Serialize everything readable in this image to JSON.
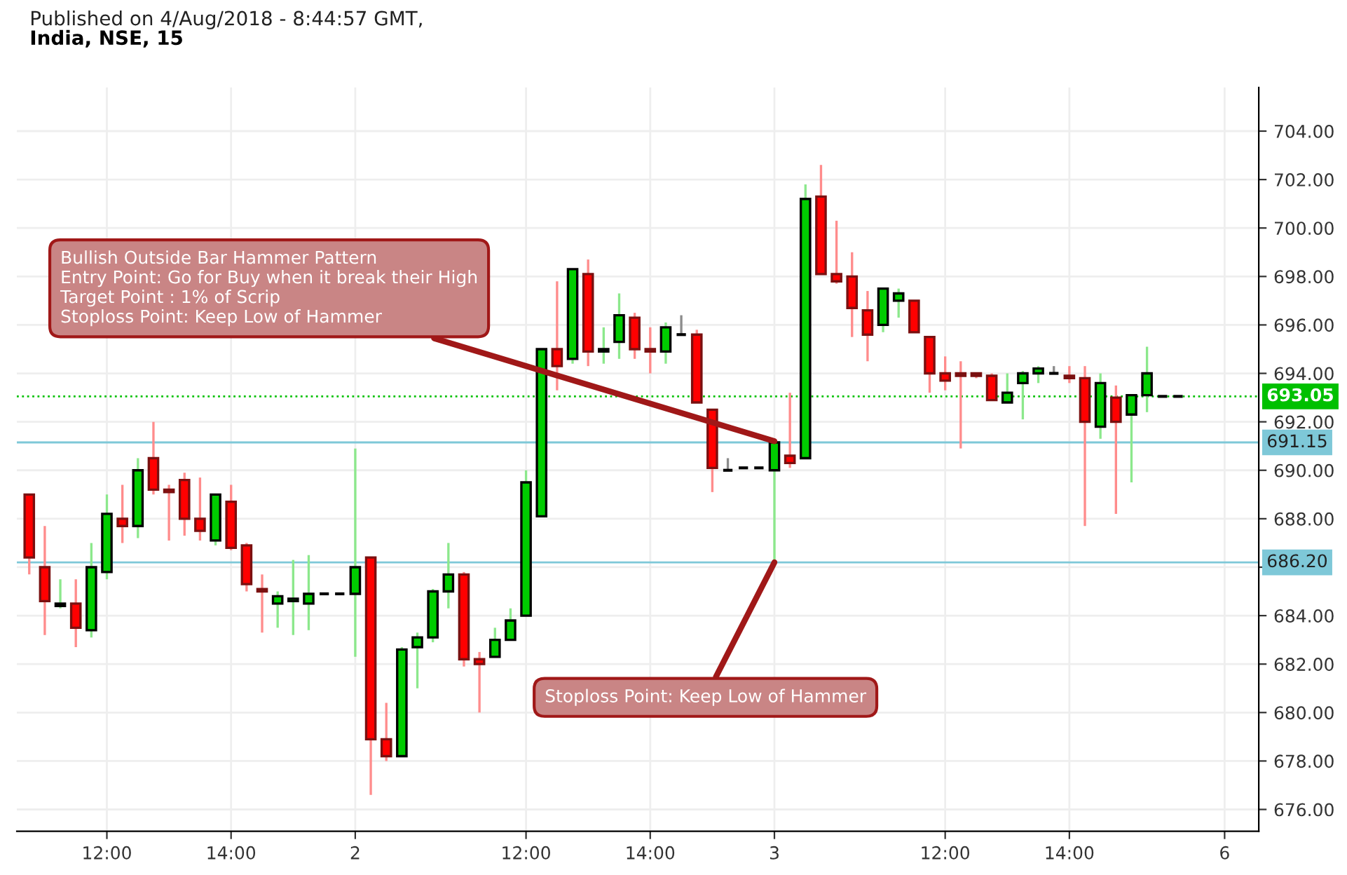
{
  "chart_data": {
    "type": "candlestick",
    "title": "India, NSE, 15",
    "annotations": [
      "Published on 4/Aug/2018 - 8:44:57 GMT,",
      {
        "text": "Bullish Outside Bar Hammer Pattern\nEntry Point: Go for Buy when it break their High\nTarget Point : 1% of Scrip\nStoploss Point: Keep Low of Hammer",
        "x": "3",
        "y": 691.2
      },
      {
        "text": "Stoploss Point: Keep Low of Hammer",
        "x": "3",
        "y": 686.2
      }
    ],
    "categories": [
      null,
      null,
      null,
      null,
      null,
      "12:00",
      null,
      null,
      null,
      null,
      null,
      null,
      null,
      "14:00",
      null,
      null,
      null,
      null,
      null,
      null,
      null,
      "2",
      null,
      null,
      null,
      null,
      null,
      null,
      null,
      null,
      null,
      null,
      "12:00",
      null,
      null,
      null,
      null,
      null,
      null,
      null,
      "14:00",
      null,
      null,
      null,
      null,
      null,
      null,
      null,
      "3",
      null,
      null,
      null,
      null,
      null,
      null,
      null,
      null,
      null,
      null,
      "12:00",
      null,
      null,
      null,
      null,
      null,
      null,
      null,
      "14:00",
      null,
      null,
      null,
      null,
      null,
      null,
      null,
      null,
      null,
      "6"
    ],
    "ohlc": [
      [
        689.0,
        689.0,
        685.7,
        686.4
      ],
      [
        686.0,
        687.7,
        683.2,
        684.6
      ],
      [
        684.4,
        685.5,
        684.3,
        684.5
      ],
      [
        684.5,
        685.5,
        682.7,
        683.5
      ],
      [
        683.4,
        687.0,
        683.1,
        686.0
      ],
      [
        685.8,
        689.0,
        685.5,
        688.2
      ],
      [
        688.0,
        689.4,
        687.0,
        687.7
      ],
      [
        687.7,
        690.5,
        687.2,
        690.0
      ],
      [
        690.5,
        692.0,
        689.0,
        689.2
      ],
      [
        689.2,
        689.4,
        687.1,
        689.1
      ],
      [
        689.6,
        689.9,
        687.3,
        688.0
      ],
      [
        688.0,
        689.7,
        687.1,
        687.5
      ],
      [
        687.1,
        689.0,
        686.9,
        689.0
      ],
      [
        688.7,
        689.4,
        686.7,
        686.8
      ],
      [
        686.9,
        687.0,
        685.0,
        685.3
      ],
      [
        685.1,
        685.7,
        683.3,
        685.0
      ],
      [
        684.5,
        685.0,
        683.5,
        684.8
      ],
      [
        684.6,
        686.3,
        683.2,
        684.7
      ],
      [
        684.5,
        686.5,
        683.4,
        684.9
      ],
      [
        684.9,
        684.9,
        684.9,
        684.9
      ],
      [
        684.9,
        684.9,
        684.9,
        684.9
      ],
      [
        684.9,
        690.9,
        682.3,
        686.0
      ],
      [
        686.4,
        686.4,
        676.6,
        678.9
      ],
      [
        678.9,
        680.4,
        678.0,
        678.2
      ],
      [
        678.2,
        682.7,
        678.2,
        682.6
      ],
      [
        682.7,
        683.3,
        681.0,
        683.1
      ],
      [
        683.1,
        685.1,
        682.9,
        685.0
      ],
      [
        685.0,
        687.0,
        684.3,
        685.7
      ],
      [
        685.7,
        685.8,
        681.9,
        682.2
      ],
      [
        682.2,
        682.5,
        680.0,
        682.0
      ],
      [
        682.3,
        683.5,
        682.3,
        683.0
      ],
      [
        683.0,
        684.3,
        683.0,
        683.8
      ],
      [
        684.0,
        690.0,
        684.0,
        689.5
      ],
      [
        688.1,
        695.0,
        688.1,
        695.0
      ],
      [
        695.0,
        697.8,
        693.3,
        694.3
      ],
      [
        694.6,
        698.3,
        694.4,
        698.3
      ],
      [
        698.1,
        698.7,
        694.3,
        694.9
      ],
      [
        694.9,
        695.9,
        694.4,
        695.0
      ],
      [
        695.3,
        697.3,
        694.6,
        696.4
      ],
      [
        696.3,
        696.5,
        694.6,
        695.0
      ],
      [
        695.0,
        695.9,
        694.0,
        694.9
      ],
      [
        694.9,
        696.1,
        694.4,
        695.9
      ],
      [
        695.6,
        696.4,
        695.6,
        695.6
      ],
      [
        695.6,
        695.8,
        692.8,
        692.8
      ],
      [
        692.5,
        692.5,
        689.1,
        690.1
      ],
      [
        690.0,
        690.5,
        690.0,
        690.0
      ],
      [
        690.1,
        690.1,
        690.1,
        690.1
      ],
      [
        690.1,
        690.1,
        690.1,
        690.1
      ],
      [
        690.0,
        691.2,
        686.2,
        691.15
      ],
      [
        690.6,
        693.2,
        690.1,
        690.3
      ],
      [
        690.5,
        701.8,
        690.5,
        701.2
      ],
      [
        701.3,
        702.6,
        698.1,
        698.1
      ],
      [
        698.1,
        700.3,
        697.7,
        697.8
      ],
      [
        698.0,
        699.0,
        695.5,
        696.7
      ],
      [
        696.6,
        697.4,
        694.5,
        695.6
      ],
      [
        696.0,
        697.5,
        695.7,
        697.5
      ],
      [
        697.0,
        697.5,
        696.3,
        697.3
      ],
      [
        697.0,
        697.0,
        695.7,
        695.7
      ],
      [
        695.5,
        695.5,
        693.2,
        694.0
      ],
      [
        694.0,
        694.7,
        693.3,
        693.7
      ],
      [
        694.0,
        694.5,
        690.9,
        693.9
      ],
      [
        694.0,
        694.0,
        693.8,
        693.9
      ],
      [
        693.9,
        694.0,
        692.9,
        692.9
      ],
      [
        692.8,
        694.0,
        692.8,
        693.2
      ],
      [
        693.6,
        694.1,
        692.1,
        694.0
      ],
      [
        694.0,
        694.3,
        693.6,
        694.2
      ],
      [
        694.0,
        694.3,
        694.0,
        694.0
      ],
      [
        693.9,
        694.3,
        693.6,
        693.8
      ],
      [
        693.8,
        694.3,
        687.7,
        692.0
      ],
      [
        691.8,
        694.0,
        691.3,
        693.6
      ],
      [
        693.0,
        693.5,
        688.2,
        692.0
      ],
      [
        692.3,
        693.1,
        689.5,
        693.1
      ],
      [
        693.1,
        695.1,
        692.4,
        694.0
      ],
      [
        693.05,
        693.05,
        693.05,
        693.05
      ],
      [
        693.05,
        693.05,
        693.05,
        693.05
      ],
      null,
      null,
      null
    ],
    "colors": [
      "#ff0000",
      "#ff0000",
      "#00cc00",
      "#ff0000",
      "#00cc00",
      "#00cc00",
      "#ff0000",
      "#00cc00",
      "#ff0000",
      "#ff0000",
      "#ff0000",
      "#ff0000",
      "#00cc00",
      "#ff0000",
      "#ff0000",
      "#ff0000",
      "#00cc00",
      "#00cc00",
      "#00cc00",
      "#000000",
      "#000000",
      "#00cc00",
      "#ff0000",
      "#ff0000",
      "#00cc00",
      "#00cc00",
      "#00cc00",
      "#00cc00",
      "#ff0000",
      "#ff0000",
      "#00cc00",
      "#00cc00",
      "#00cc00",
      "#00cc00",
      "#ff0000",
      "#00cc00",
      "#ff0000",
      "#00cc00",
      "#00cc00",
      "#ff0000",
      "#ff0000",
      "#00cc00",
      "#000000",
      "#ff0000",
      "#ff0000",
      "#000000",
      "#000000",
      "#000000",
      "#00cc00",
      "#ff0000",
      "#00cc00",
      "#ff0000",
      "#ff0000",
      "#ff0000",
      "#ff0000",
      "#00cc00",
      "#00cc00",
      "#ff0000",
      "#ff0000",
      "#ff0000",
      "#ff0000",
      "#ff0000",
      "#ff0000",
      "#00cc00",
      "#00cc00",
      "#00cc00",
      "#000000",
      "#ff0000",
      "#ff0000",
      "#00cc00",
      "#ff0000",
      "#00cc00",
      "#00cc00",
      "#000000",
      "#000000",
      null,
      null,
      null
    ],
    "ylim": [
      675.1,
      705.8
    ],
    "yticks": [
      {
        "value": 676,
        "label": "676.00"
      },
      {
        "value": 678,
        "label": "678.00"
      },
      {
        "value": 680,
        "label": "680.00"
      },
      {
        "value": 682,
        "label": "682.00"
      },
      {
        "value": 684,
        "label": "684.00"
      },
      {
        "value": 686,
        "label": null
      },
      {
        "value": 688,
        "label": "688.00"
      },
      {
        "value": 690,
        "label": "690.00"
      },
      {
        "value": 692,
        "label": "692.00"
      },
      {
        "value": 694,
        "label": "694.00"
      },
      {
        "value": 696,
        "label": "696.00"
      },
      {
        "value": 698,
        "label": "698.00"
      },
      {
        "value": 700,
        "label": "700.00"
      },
      {
        "value": 702,
        "label": "702.00"
      },
      {
        "value": 704,
        "label": "704.00"
      }
    ],
    "ref_lines": [
      {
        "axis": "y",
        "value": 693.05,
        "label": "693.05",
        "color": "#00c000",
        "line_style": "dotted"
      },
      {
        "axis": "y",
        "value": 691.15,
        "label": "691.15",
        "color": "#7ec8d8",
        "line_style": "solid"
      },
      {
        "axis": "y",
        "value": 686.2,
        "label": "686.20",
        "color": "#7ec8d8",
        "line_style": "solid"
      }
    ],
    "grid": true
  }
}
